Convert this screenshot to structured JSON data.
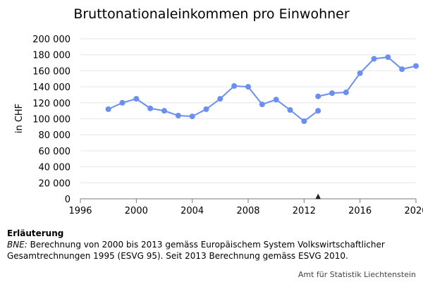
{
  "chart_data": {
    "type": "line",
    "title": "Bruttonationaleinkommen pro Einwohner",
    "ylabel": "in CHF",
    "xlabel": "",
    "xlim": [
      1996,
      2020
    ],
    "ylim": [
      0,
      200000
    ],
    "x_ticks": [
      1996,
      2000,
      2004,
      2008,
      2012,
      2016,
      2020
    ],
    "x_tick_labels": [
      "1996",
      "2000",
      "2004",
      "2008",
      "2012",
      "2016",
      "2020"
    ],
    "y_ticks": [
      0,
      20000,
      40000,
      60000,
      80000,
      100000,
      120000,
      140000,
      160000,
      180000,
      200000
    ],
    "y_tick_labels": [
      "0",
      "20 000",
      "40 000",
      "60 000",
      "80 000",
      "100 000",
      "120 000",
      "140 000",
      "160 000",
      "180 000",
      "200 000"
    ],
    "grid": true,
    "color": "#6a8ff0",
    "series": [
      {
        "segment": "ESVG 95",
        "x": [
          1998,
          1999,
          2000,
          2001,
          2002,
          2003,
          2004,
          2005,
          2006,
          2007,
          2008,
          2009,
          2010,
          2011,
          2012,
          2013
        ],
        "values": [
          112000,
          120000,
          125000,
          113000,
          110000,
          104000,
          103000,
          112000,
          125000,
          141000,
          140000,
          118000,
          124000,
          111000,
          97000,
          110000
        ]
      },
      {
        "segment": "ESVG 2010",
        "x": [
          2013,
          2014,
          2015,
          2016,
          2017,
          2018,
          2019,
          2020
        ],
        "values": [
          128000,
          132000,
          133000,
          157000,
          175000,
          177000,
          162000,
          166000
        ]
      }
    ],
    "markers": [
      {
        "x": 2013,
        "symbol": "▲"
      }
    ]
  },
  "notes": {
    "title": "Erläuterung",
    "abbr": "BNE:",
    "text": " Berechnung von 2000 bis 2013 gemäss Europäischem System Volkswirtschaftlicher Gesamtrechnungen 1995 (ESVG 95). Seit 2013 Berechnung gemäss ESVG 2010."
  },
  "source": "Amt für Statistik Liechtenstein"
}
